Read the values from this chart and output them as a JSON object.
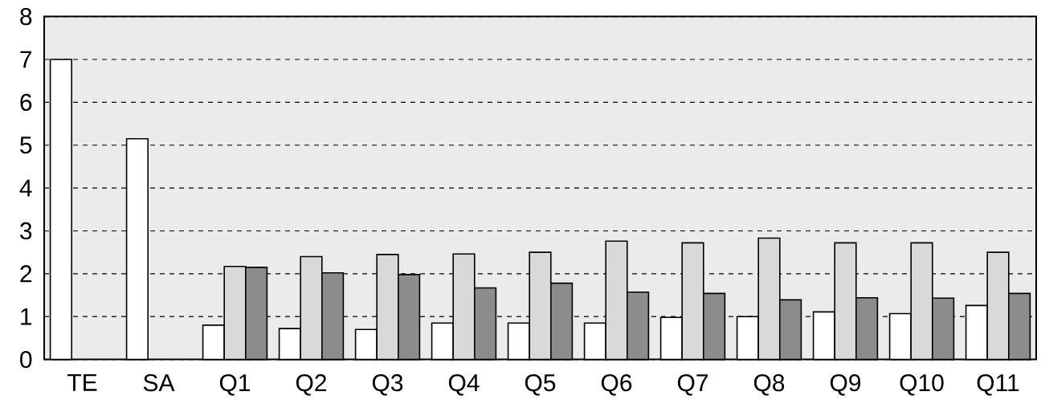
{
  "chart_data": {
    "type": "bar",
    "categories": [
      "TE",
      "SA",
      "Q1",
      "Q2",
      "Q3",
      "Q4",
      "Q5",
      "Q6",
      "Q7",
      "Q8",
      "Q9",
      "Q10",
      "Q11"
    ],
    "series": [
      {
        "color": "#ffffff",
        "values": [
          7.0,
          5.15,
          0.8,
          0.72,
          0.7,
          0.85,
          0.85,
          0.85,
          0.98,
          1.0,
          1.11,
          1.07,
          1.26
        ]
      },
      {
        "color": "#d9d9d9",
        "values": [
          null,
          null,
          2.17,
          2.4,
          2.45,
          2.46,
          2.5,
          2.76,
          2.72,
          2.83,
          2.72,
          2.72,
          2.5
        ]
      },
      {
        "color": "#8c8c8c",
        "values": [
          null,
          null,
          2.15,
          2.02,
          1.98,
          1.67,
          1.78,
          1.57,
          1.54,
          1.39,
          1.44,
          1.43,
          1.54
        ]
      }
    ],
    "ylim": [
      0,
      8
    ],
    "yticks": [
      0,
      1,
      2,
      3,
      4,
      5,
      6,
      7,
      8
    ],
    "grid": "y"
  }
}
